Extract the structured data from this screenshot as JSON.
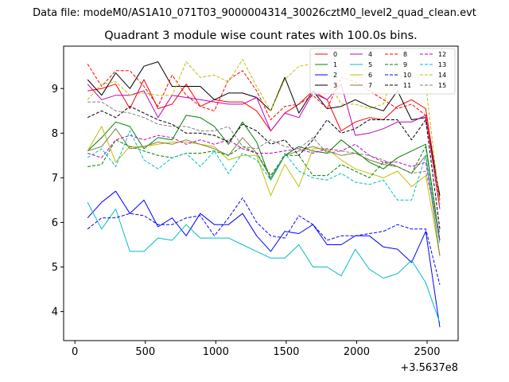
{
  "suptitle": "Data file: modeM0/AS1A10_071T03_9000004314_30026cztM0_level2_quad_clean.evt",
  "chart_data": {
    "type": "line",
    "title": "Quadrant 3 module wise count rates with 100.0s bins.",
    "xlabel": "",
    "ylabel": "",
    "x_offset_label": "+3.5637e8",
    "xlim": [
      -80,
      2720
    ],
    "ylim": [
      3.35,
      9.95
    ],
    "xticks": [
      0,
      500,
      1000,
      1500,
      2000,
      2500
    ],
    "yticks": [
      4,
      5,
      6,
      7,
      8,
      9
    ],
    "legend_position": "top-right",
    "x": [
      90,
      190,
      290,
      390,
      490,
      590,
      690,
      790,
      890,
      990,
      1090,
      1190,
      1290,
      1390,
      1490,
      1590,
      1690,
      1790,
      1890,
      1990,
      2090,
      2190,
      2290,
      2390,
      2490,
      2590
    ],
    "series": [
      {
        "name": "0",
        "color": "#ff0000",
        "dash": "solid",
        "values": [
          8.95,
          9.0,
          9.1,
          8.55,
          9.2,
          8.55,
          8.65,
          9.1,
          8.6,
          8.75,
          8.7,
          8.7,
          8.5,
          8.05,
          8.45,
          8.65,
          8.95,
          8.75,
          8.05,
          8.25,
          8.35,
          8.3,
          8.6,
          8.75,
          8.55,
          6.5
        ]
      },
      {
        "name": "1",
        "color": "#008000",
        "dash": "solid",
        "values": [
          7.6,
          7.9,
          8.25,
          8.15,
          7.65,
          7.9,
          7.85,
          8.4,
          8.35,
          8.15,
          7.75,
          8.25,
          7.8,
          6.95,
          7.5,
          7.7,
          7.6,
          7.55,
          7.85,
          7.6,
          7.35,
          7.2,
          7.45,
          7.6,
          7.75,
          5.6
        ]
      },
      {
        "name": "2",
        "color": "#0000ff",
        "dash": "solid",
        "values": [
          6.1,
          6.45,
          6.7,
          6.2,
          6.5,
          5.9,
          6.1,
          5.7,
          6.2,
          5.95,
          5.95,
          6.2,
          5.7,
          5.35,
          5.8,
          5.75,
          5.95,
          5.5,
          5.5,
          5.7,
          5.7,
          5.45,
          5.4,
          5.1,
          5.8,
          3.65
        ]
      },
      {
        "name": "3",
        "color": "#000000",
        "dash": "solid",
        "values": [
          9.2,
          8.85,
          9.35,
          9.0,
          9.5,
          9.6,
          9.05,
          9.05,
          9.05,
          8.75,
          8.9,
          8.9,
          8.8,
          8.5,
          9.25,
          8.45,
          8.95,
          8.55,
          8.6,
          8.75,
          8.6,
          8.5,
          8.95,
          8.3,
          8.35,
          6.6
        ]
      },
      {
        "name": "4",
        "color": "#c000c0",
        "dash": "solid",
        "values": [
          9.1,
          8.75,
          8.85,
          8.85,
          8.95,
          8.35,
          8.85,
          8.8,
          8.75,
          8.7,
          8.65,
          8.65,
          8.8,
          8.05,
          8.45,
          8.35,
          8.9,
          8.75,
          9.1,
          7.95,
          8.0,
          8.1,
          8.25,
          8.25,
          8.4,
          6.3
        ]
      },
      {
        "name": "5",
        "color": "#00bfbf",
        "dash": "solid",
        "values": [
          6.45,
          5.85,
          6.3,
          5.35,
          5.35,
          5.65,
          5.6,
          5.95,
          5.65,
          5.65,
          5.65,
          5.5,
          5.35,
          5.2,
          5.2,
          5.5,
          5.0,
          5.0,
          4.8,
          5.4,
          4.95,
          4.75,
          4.85,
          5.15,
          4.65,
          3.75
        ]
      },
      {
        "name": "6",
        "color": "#bfbf00",
        "dash": "solid",
        "values": [
          7.6,
          8.15,
          7.35,
          7.7,
          7.7,
          7.75,
          7.8,
          7.8,
          7.75,
          7.7,
          7.4,
          7.5,
          7.5,
          6.6,
          7.3,
          6.8,
          7.65,
          7.65,
          7.4,
          7.2,
          7.1,
          7.0,
          7.15,
          6.8,
          7.05,
          5.25
        ]
      },
      {
        "name": "7",
        "color": "#808040",
        "dash": "solid",
        "values": [
          7.6,
          7.7,
          8.1,
          7.65,
          7.7,
          7.8,
          7.75,
          7.85,
          7.75,
          7.65,
          7.5,
          7.9,
          7.55,
          7.0,
          7.5,
          7.6,
          7.7,
          7.6,
          7.5,
          7.55,
          7.4,
          7.3,
          7.25,
          7.1,
          7.5,
          5.25
        ]
      },
      {
        "name": "8",
        "color": "#ff0000",
        "dash": "dashed",
        "values": [
          9.55,
          9.05,
          9.4,
          9.4,
          9.05,
          8.6,
          9.3,
          8.85,
          8.6,
          8.5,
          9.2,
          9.4,
          8.95,
          8.3,
          8.6,
          8.65,
          8.85,
          8.55,
          9.25,
          9.15,
          8.95,
          8.75,
          8.55,
          8.65,
          8.4,
          6.4
        ]
      },
      {
        "name": "9",
        "color": "#008000",
        "dash": "dashed",
        "values": [
          7.25,
          7.3,
          7.85,
          7.7,
          7.6,
          7.5,
          7.45,
          7.55,
          7.55,
          7.6,
          7.5,
          7.7,
          7.55,
          7.05,
          7.5,
          7.5,
          7.05,
          7.05,
          7.3,
          7.15,
          7.0,
          7.35,
          7.25,
          7.1,
          7.7,
          5.6
        ]
      },
      {
        "name": "10",
        "color": "#0000ff",
        "dash": "dashed",
        "values": [
          5.85,
          6.1,
          6.1,
          6.2,
          6.15,
          5.95,
          5.95,
          6.1,
          6.15,
          5.7,
          6.1,
          6.55,
          6.0,
          5.7,
          5.65,
          6.15,
          5.95,
          5.6,
          5.7,
          5.7,
          5.75,
          5.8,
          5.95,
          5.85,
          5.85,
          4.6
        ]
      },
      {
        "name": "11",
        "color": "#000000",
        "dash": "dashed",
        "values": [
          8.35,
          8.5,
          8.35,
          8.6,
          8.45,
          8.3,
          8.2,
          8.0,
          8.0,
          7.95,
          7.8,
          8.2,
          8.05,
          7.75,
          7.85,
          7.5,
          7.85,
          8.3,
          8.0,
          8.1,
          8.3,
          8.3,
          8.3,
          7.85,
          8.3,
          5.85
        ]
      },
      {
        "name": "12",
        "color": "#c000c0",
        "dash": "dashed",
        "values": [
          7.55,
          7.45,
          7.85,
          7.95,
          7.85,
          7.95,
          7.9,
          7.75,
          7.85,
          7.75,
          7.85,
          7.65,
          7.55,
          7.55,
          7.6,
          7.65,
          7.55,
          7.65,
          7.6,
          7.75,
          7.5,
          7.35,
          7.35,
          7.25,
          7.35,
          5.6
        ]
      },
      {
        "name": "13",
        "color": "#00bfbf",
        "dash": "dashed",
        "values": [
          7.45,
          7.65,
          7.25,
          8.05,
          7.4,
          7.2,
          7.45,
          7.55,
          7.25,
          7.6,
          7.1,
          7.55,
          7.4,
          6.95,
          7.55,
          7.15,
          7.0,
          6.95,
          7.1,
          6.9,
          6.85,
          6.95,
          6.5,
          6.5,
          7.5,
          5.5
        ]
      },
      {
        "name": "14",
        "color": "#bfbf00",
        "dash": "dashed",
        "values": [
          8.75,
          9.1,
          9.15,
          8.85,
          8.9,
          8.85,
          8.85,
          9.6,
          9.25,
          9.3,
          9.15,
          9.65,
          9.05,
          8.5,
          9.2,
          9.5,
          9.55,
          9.2,
          8.65,
          8.65,
          8.55,
          8.65,
          9.6,
          9.35,
          9.1,
          6.4
        ]
      },
      {
        "name": "15",
        "color": "#808080",
        "dash": "dashed",
        "values": [
          8.7,
          8.7,
          8.5,
          8.45,
          8.35,
          8.2,
          8.15,
          8.15,
          8.05,
          8.05,
          8.15,
          7.7,
          7.65,
          7.85,
          7.7,
          7.65,
          7.9,
          7.55,
          7.6,
          7.55,
          7.5,
          7.4,
          7.25,
          7.1,
          7.15,
          5.75
        ]
      }
    ]
  }
}
